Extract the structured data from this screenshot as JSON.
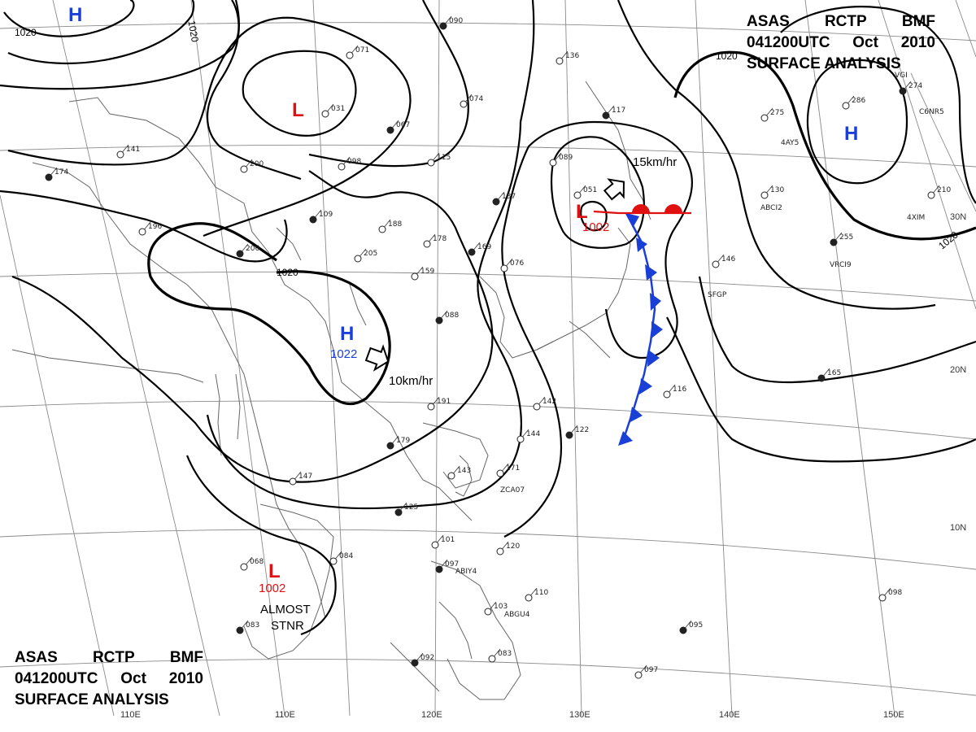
{
  "title": {
    "line1": [
      "ASAS",
      "RCTP",
      "BMF"
    ],
    "line2": [
      "041200UTC",
      "Oct",
      "2010"
    ],
    "line3": "SURFACE ANALYSIS"
  },
  "longitude_labels": [
    "110E",
    "120E",
    "130E",
    "140E",
    "150E"
  ],
  "latitude_labels": [
    "30N",
    "20N",
    "10N"
  ],
  "isobar_labels": [
    "1020",
    "1020",
    "1020",
    "1020"
  ],
  "systems": [
    {
      "type": "H",
      "pressure": ""
    },
    {
      "type": "L",
      "pressure": ""
    },
    {
      "type": "H",
      "pressure": "1022",
      "motion": "10km/hr"
    },
    {
      "type": "L",
      "pressure": "1002",
      "motion": "15km/hr"
    },
    {
      "type": "H",
      "pressure": ""
    },
    {
      "type": "L",
      "pressure": "1002",
      "motion": "ALMOST STNR"
    }
  ],
  "stations": [
    "090",
    "071",
    "141",
    "174",
    "200",
    "031",
    "067",
    "074",
    "136",
    "117",
    "089",
    "051",
    "109",
    "098",
    "115",
    "137",
    "205",
    "178",
    "169",
    "159",
    "076",
    "088",
    "191",
    "142",
    "122",
    "144",
    "147",
    "179",
    "143",
    "171",
    "125",
    "084",
    "068",
    "083",
    "101",
    "120",
    "097",
    "103",
    "110",
    "092",
    "083",
    "097",
    "095",
    "098",
    "116",
    "165",
    "146",
    "130",
    "255",
    "275",
    "286",
    "274",
    "210",
    "196",
    "206",
    "188"
  ],
  "station_ids": [
    "ZCA07",
    "ABIY4",
    "ABGU4",
    "SFGP",
    "VRCI9",
    "ABCI2",
    "4XIM",
    "C6NR5",
    "VGI",
    "4AY5"
  ]
}
